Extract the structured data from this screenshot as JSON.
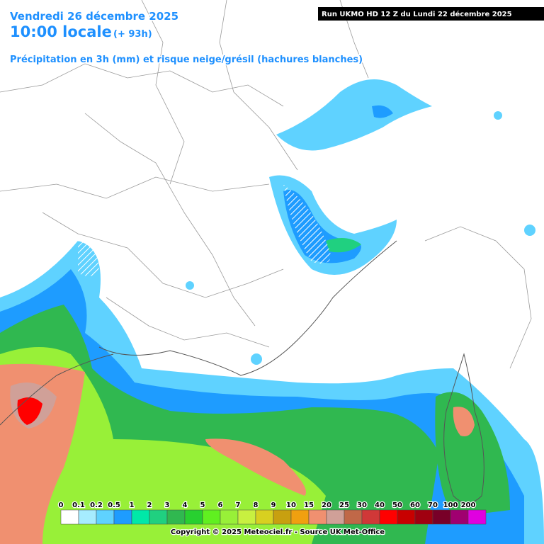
{
  "header": {
    "date": "Vendredi 26 décembre 2025",
    "time": "10:00 locale",
    "offset": "(+ 93h)",
    "subtitle": "Précipitation en 3h (mm) et risque neige/grésil (hachures blanches)",
    "run": "Run UKMO HD 12 Z du Lundi 22 décembre 2025"
  },
  "legend": {
    "items": [
      {
        "label": "0",
        "color": "#ffffff"
      },
      {
        "label": "0.1",
        "color": "#a6ecff"
      },
      {
        "label": "0.2",
        "color": "#5fd2ff"
      },
      {
        "label": "0.5",
        "color": "#1e9cff"
      },
      {
        "label": "1",
        "color": "#00e8a8"
      },
      {
        "label": "2",
        "color": "#20d080"
      },
      {
        "label": "3",
        "color": "#30b850"
      },
      {
        "label": "4",
        "color": "#28d030"
      },
      {
        "label": "5",
        "color": "#60f020"
      },
      {
        "label": "6",
        "color": "#98f038"
      },
      {
        "label": "7",
        "color": "#c8f040"
      },
      {
        "label": "8",
        "color": "#d8d020"
      },
      {
        "label": "9",
        "color": "#c8a010"
      },
      {
        "label": "10",
        "color": "#f0a010"
      },
      {
        "label": "15",
        "color": "#f09070"
      },
      {
        "label": "20",
        "color": "#d0a098"
      },
      {
        "label": "25",
        "color": "#c06848"
      },
      {
        "label": "30",
        "color": "#d03838"
      },
      {
        "label": "40",
        "color": "#ff0000"
      },
      {
        "label": "50",
        "color": "#c80000"
      },
      {
        "label": "60",
        "color": "#a00010"
      },
      {
        "label": "70",
        "color": "#780028"
      },
      {
        "label": "100",
        "color": "#a00070"
      },
      {
        "label": "200",
        "color": "#e000e0"
      }
    ]
  },
  "footer": {
    "copyright": "Copyright © 2025 Meteociel.fr - Source UK Met-Office"
  }
}
